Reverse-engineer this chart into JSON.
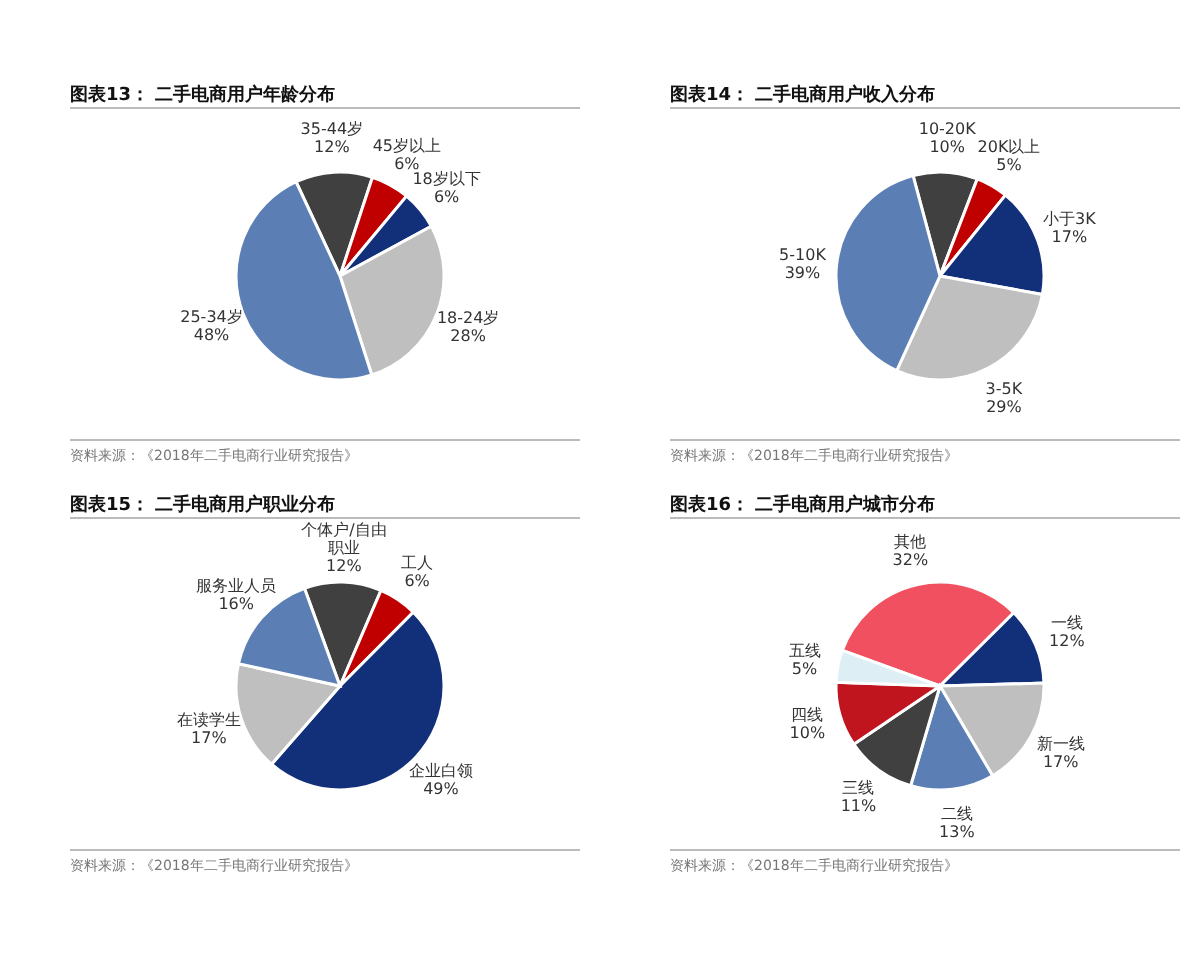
{
  "chart_data": [
    {
      "type": "pie",
      "title": "图表13：  二手电商用户年龄分布",
      "categories": [
        "35-44岁",
        "45岁以上",
        "18岁以下",
        "18-24岁",
        "25-34岁"
      ],
      "values": [
        12,
        6,
        6,
        28,
        48
      ],
      "value_labels": [
        "12%",
        "6%",
        "6%",
        "28%",
        "48%"
      ],
      "colors": [
        "#404040",
        "#c00000",
        "#12307a",
        "#bfbfbf",
        "#5b7fb5"
      ],
      "annotations": [
        "资料来源：《2018年二手电商行业研究报告》"
      ]
    },
    {
      "type": "pie",
      "title": "图表14：  二手电商用户收入分布",
      "categories": [
        "10-20K",
        "20K以上",
        "小于3K",
        "3-5K",
        "5-10K"
      ],
      "values": [
        10,
        5,
        17,
        29,
        39
      ],
      "value_labels": [
        "10%",
        "5%",
        "17%",
        "29%",
        "39%"
      ],
      "colors": [
        "#404040",
        "#c00000",
        "#12307a",
        "#bfbfbf",
        "#5b7fb5"
      ],
      "annotations": [
        "资料来源：《2018年二手电商行业研究报告》"
      ]
    },
    {
      "type": "pie",
      "title": "图表15：  二手电商用户职业分布",
      "categories": [
        "个体户/自由职业",
        "工人",
        "企业白领",
        "在读学生",
        "服务业人员"
      ],
      "values": [
        12,
        6,
        49,
        17,
        16
      ],
      "value_labels": [
        "12%",
        "6%",
        "49%",
        "17%",
        "16%"
      ],
      "colors": [
        "#404040",
        "#c00000",
        "#12307a",
        "#bfbfbf",
        "#5b7fb5"
      ],
      "annotations": [
        "资料来源：《2018年二手电商行业研究报告》"
      ]
    },
    {
      "type": "pie",
      "title": "图表16：  二手电商用户城市分布",
      "categories": [
        "其他",
        "一线",
        "新一线",
        "二线",
        "三线",
        "四线",
        "五线"
      ],
      "values": [
        32,
        12,
        17,
        13,
        11,
        10,
        5
      ],
      "value_labels": [
        "32%",
        "12%",
        "17%",
        "13%",
        "11%",
        "10%",
        "5%"
      ],
      "colors": [
        "#f0505f",
        "#12307a",
        "#bfbfbf",
        "#5b7fb5",
        "#404040",
        "#c0141e",
        "#ddeef5"
      ],
      "annotations": [
        "资料来源：《2018年二手电商行业研究报告》"
      ]
    }
  ]
}
